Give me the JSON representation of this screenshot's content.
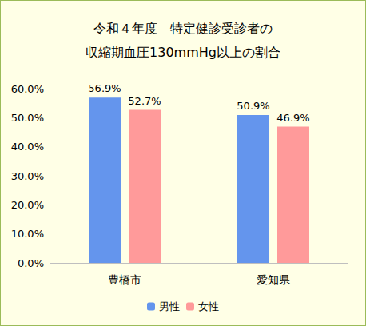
{
  "chart_data": {
    "type": "bar",
    "title": "令和４年度　特定健診受診者の\n収縮期血圧130mmHg以上の割合",
    "categories": [
      "豊橋市",
      "愛知県"
    ],
    "series": [
      {
        "name": "男性",
        "color": "#6495ed",
        "values": [
          56.9,
          50.9
        ],
        "value_labels": [
          "56.9%",
          "50.9%"
        ]
      },
      {
        "name": "女性",
        "color": "#ff9a9a",
        "values": [
          52.7,
          46.9
        ],
        "value_labels": [
          "52.7%",
          "46.9%"
        ]
      }
    ],
    "ylim": [
      0,
      60
    ],
    "yticks": [
      {
        "value": 0,
        "label": "0.0%"
      },
      {
        "value": 10,
        "label": "10.0%"
      },
      {
        "value": 20,
        "label": "20.0%"
      },
      {
        "value": 30,
        "label": "30.0%"
      },
      {
        "value": 40,
        "label": "40.0%"
      },
      {
        "value": 50,
        "label": "50.0%"
      },
      {
        "value": 60,
        "label": "60.0%"
      }
    ],
    "grid": false,
    "legend": "bottom",
    "data_labels": true
  }
}
